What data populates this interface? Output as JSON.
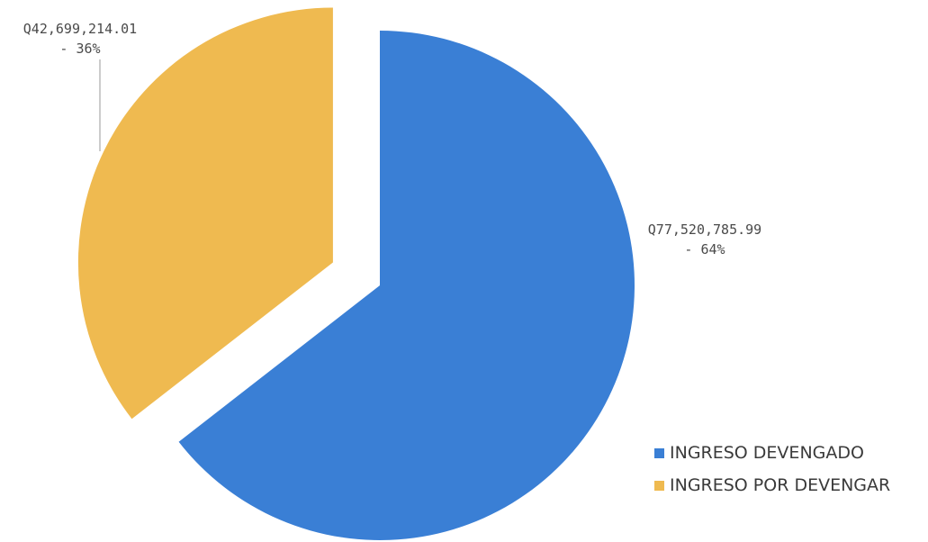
{
  "chart_data": {
    "type": "pie",
    "title": "",
    "slices": [
      {
        "label": "INGRESO DEVENGADO",
        "value": 77520785.99,
        "percent": 64,
        "value_label": "Q77,520,785.99",
        "percent_label": "- 64%",
        "color": "#3a7fd5",
        "exploded": false
      },
      {
        "label": "INGRESO POR DEVENGAR",
        "value": 42699214.01,
        "percent": 36,
        "value_label": "Q42,699,214.01",
        "percent_label": "- 36%",
        "color": "#efba50",
        "exploded": true
      }
    ],
    "legend_position": "bottom-right"
  }
}
